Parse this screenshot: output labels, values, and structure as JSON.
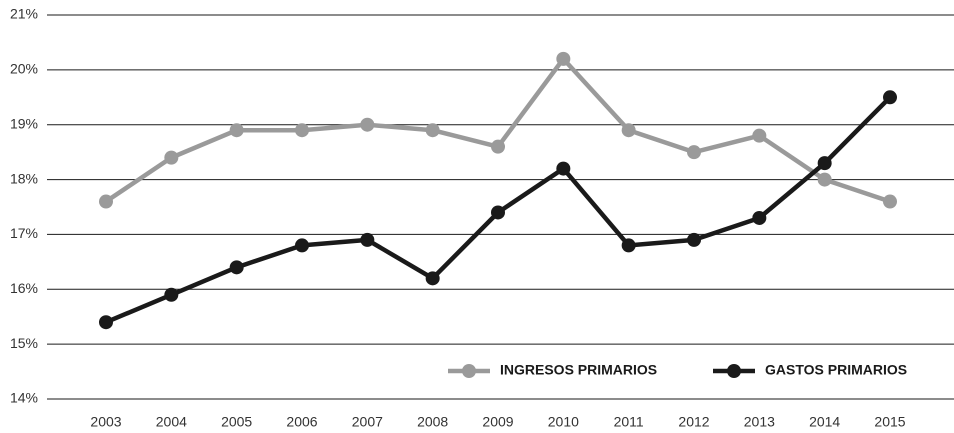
{
  "chart_data": {
    "type": "line",
    "categories": [
      "2003",
      "2004",
      "2005",
      "2006",
      "2007",
      "2008",
      "2009",
      "2010",
      "2011",
      "2012",
      "2013",
      "2014",
      "2015"
    ],
    "series": [
      {
        "name": "INGRESOS PRIMARIOS",
        "color": "#9a9a9a",
        "values": [
          17.6,
          18.4,
          18.9,
          18.9,
          19.0,
          18.9,
          18.6,
          20.2,
          18.9,
          18.5,
          18.8,
          18.0,
          17.6
        ]
      },
      {
        "name": "GASTOS PRIMARIOS",
        "color": "#1a1a1a",
        "values": [
          15.4,
          15.9,
          16.4,
          16.8,
          16.9,
          16.2,
          17.4,
          18.2,
          16.8,
          16.9,
          17.3,
          18.3,
          19.5
        ]
      }
    ],
    "ylim": [
      14,
      21
    ],
    "yticks": [
      {
        "value": 14,
        "label": "14%"
      },
      {
        "value": 15,
        "label": "15%"
      },
      {
        "value": 16,
        "label": "16%"
      },
      {
        "value": 17,
        "label": "17%"
      },
      {
        "value": 18,
        "label": "18%"
      },
      {
        "value": 19,
        "label": "19%"
      },
      {
        "value": 20,
        "label": "20%"
      },
      {
        "value": 21,
        "label": "21%"
      }
    ],
    "grid": true,
    "legend": "bottom-right"
  }
}
